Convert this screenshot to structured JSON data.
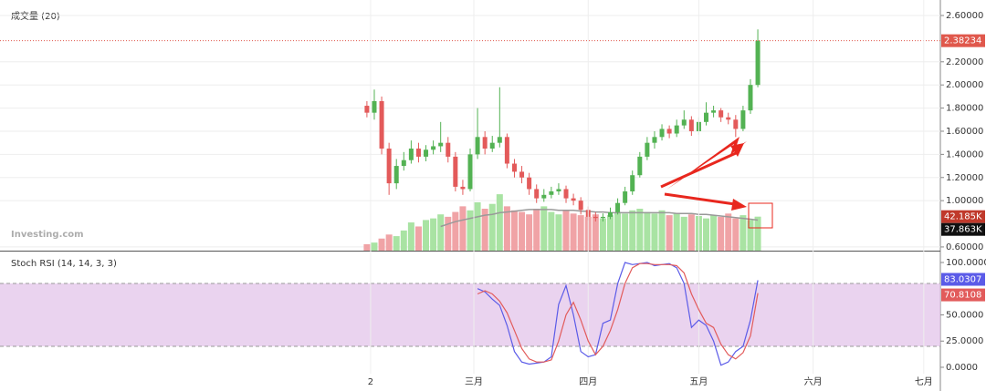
{
  "chart_data": [
    {
      "type": "candlestick",
      "title": "成交量 (20)",
      "watermark": "Investing.com",
      "x": [
        31,
        33,
        35,
        37,
        39,
        41,
        43,
        45,
        47,
        49,
        51,
        53,
        55,
        57,
        59,
        61,
        63,
        65,
        67,
        69,
        71,
        73,
        75,
        77,
        79,
        81,
        83,
        85,
        87,
        89,
        91,
        93,
        95,
        97,
        99,
        101,
        103,
        105,
        107,
        109,
        111,
        113,
        115,
        117,
        119,
        121,
        123,
        125,
        127,
        129,
        131,
        133,
        135,
        137
      ],
      "xlim": [
        -68.5,
        186.5
      ],
      "open": [
        1.82,
        1.76,
        1.86,
        1.45,
        1.15,
        1.3,
        1.35,
        1.45,
        1.38,
        1.44,
        1.47,
        1.5,
        1.38,
        1.12,
        1.1,
        1.4,
        1.55,
        1.45,
        1.5,
        1.55,
        1.32,
        1.25,
        1.2,
        1.1,
        1.02,
        1.05,
        1.08,
        1.1,
        1.02,
        1.0,
        0.92,
        0.86,
        0.85,
        0.86,
        0.9,
        0.98,
        1.08,
        1.22,
        1.38,
        1.5,
        1.55,
        1.62,
        1.58,
        1.65,
        1.7,
        1.6,
        1.68,
        1.76,
        1.78,
        1.72,
        1.7,
        1.62,
        1.78,
        2.0
      ],
      "high": [
        1.86,
        1.96,
        1.9,
        1.5,
        1.36,
        1.42,
        1.52,
        1.5,
        1.48,
        1.52,
        1.68,
        1.55,
        1.42,
        1.18,
        1.45,
        1.8,
        1.6,
        1.56,
        1.98,
        1.58,
        1.36,
        1.3,
        1.24,
        1.14,
        1.1,
        1.12,
        1.15,
        1.13,
        1.06,
        1.03,
        0.95,
        0.9,
        0.89,
        0.94,
        1.02,
        1.12,
        1.26,
        1.42,
        1.55,
        1.6,
        1.66,
        1.65,
        1.7,
        1.78,
        1.73,
        1.72,
        1.85,
        1.82,
        1.8,
        1.76,
        1.74,
        1.82,
        2.05,
        2.48
      ],
      "low": [
        1.72,
        1.7,
        1.4,
        1.05,
        1.1,
        1.26,
        1.32,
        1.33,
        1.34,
        1.4,
        1.42,
        1.33,
        1.08,
        1.05,
        1.08,
        1.36,
        1.4,
        1.42,
        1.46,
        1.28,
        1.2,
        1.15,
        1.05,
        0.98,
        0.99,
        1.02,
        1.05,
        0.98,
        0.96,
        0.88,
        0.83,
        0.82,
        0.82,
        0.84,
        0.88,
        0.96,
        1.05,
        1.2,
        1.35,
        1.45,
        1.52,
        1.54,
        1.55,
        1.62,
        1.56,
        1.57,
        1.65,
        1.72,
        1.68,
        1.66,
        1.55,
        1.6,
        1.75,
        1.98
      ],
      "close": [
        1.76,
        1.86,
        1.45,
        1.15,
        1.3,
        1.35,
        1.45,
        1.38,
        1.44,
        1.47,
        1.5,
        1.38,
        1.12,
        1.1,
        1.4,
        1.55,
        1.45,
        1.5,
        1.55,
        1.32,
        1.25,
        1.2,
        1.1,
        1.02,
        1.05,
        1.08,
        1.1,
        1.02,
        1.0,
        0.92,
        0.86,
        0.85,
        0.86,
        0.9,
        0.98,
        1.08,
        1.22,
        1.38,
        1.5,
        1.55,
        1.62,
        1.58,
        1.65,
        1.7,
        1.6,
        1.68,
        1.76,
        1.78,
        1.72,
        1.7,
        1.62,
        1.78,
        2.0,
        2.38234
      ],
      "ylim": [
        0.568,
        2.734
      ],
      "yticks": [
        {
          "value": 2.6,
          "label": "2.60000"
        },
        {
          "value": 2.2,
          "label": "2.20000"
        },
        {
          "value": 2.0,
          "label": "2.00000"
        },
        {
          "value": 1.8,
          "label": "1.80000"
        },
        {
          "value": 1.6,
          "label": "1.60000"
        },
        {
          "value": 1.4,
          "label": "1.40000"
        },
        {
          "value": 1.2,
          "label": "1.20000"
        },
        {
          "value": 1.0,
          "label": "1.00000"
        },
        {
          "value": 0.6,
          "label": "0.60000"
        }
      ],
      "up_color": "#53b253",
      "down_color": "#e35a5a",
      "last_color": "#e0584c",
      "volume": {
        "values": [
          8,
          10,
          15,
          20,
          18,
          25,
          35,
          30,
          38,
          40,
          45,
          42,
          48,
          55,
          50,
          60,
          52,
          58,
          70,
          55,
          50,
          48,
          45,
          52,
          55,
          48,
          45,
          50,
          46,
          44,
          42,
          45,
          40,
          44,
          48,
          46,
          50,
          52,
          48,
          46,
          50,
          44,
          46,
          42,
          45,
          43,
          40,
          44,
          42,
          46,
          40,
          44,
          38,
          42.185
        ],
        "ylim": [
          0,
          311
        ],
        "last_label": "42.185K",
        "up_color": "#a9e3a3",
        "down_color": "#f0a3a6"
      },
      "volume_ma": {
        "values": [
          null,
          null,
          null,
          null,
          null,
          null,
          null,
          null,
          null,
          null,
          30,
          33,
          36,
          38,
          40,
          42,
          44,
          45,
          47,
          48,
          49,
          50,
          51,
          51,
          51,
          51,
          50,
          50,
          50,
          49,
          49,
          48,
          48,
          47,
          47,
          47,
          47,
          47,
          47,
          47,
          47,
          47,
          46,
          46,
          46,
          45,
          45,
          44,
          43,
          42,
          41,
          40,
          39,
          37.863
        ],
        "last_label": "37.863K",
        "color": "#999999"
      }
    },
    {
      "type": "line",
      "title": "Stoch RSI (14, 14, 3, 3)",
      "x": [
        31,
        33,
        35,
        37,
        39,
        41,
        43,
        45,
        47,
        49,
        51,
        53,
        55,
        57,
        59,
        61,
        63,
        65,
        67,
        69,
        71,
        73,
        75,
        77,
        79,
        81,
        83,
        85,
        87,
        89,
        91,
        93,
        95,
        97,
        99,
        101,
        103,
        105,
        107,
        109,
        111,
        113,
        115,
        117,
        119,
        121,
        123,
        125,
        127,
        129,
        131,
        133,
        135,
        137
      ],
      "xlim": [
        -68.5,
        186.5
      ],
      "xticks": [
        {
          "value": 32,
          "label": "2"
        },
        {
          "value": 60,
          "label": "三月"
        },
        {
          "value": 91,
          "label": "四月"
        },
        {
          "value": 121,
          "label": "五月"
        },
        {
          "value": 152,
          "label": "六月"
        },
        {
          "value": 182,
          "label": "七月"
        }
      ],
      "ylim": [
        -14.8,
        108.7
      ],
      "yticks": [
        {
          "value": 100,
          "label": "100.0000"
        },
        {
          "value": 50,
          "label": "50.0000"
        },
        {
          "value": 25,
          "label": "25.0000"
        },
        {
          "value": 0,
          "label": "0.0000"
        }
      ],
      "band": [
        20,
        80
      ],
      "band_color": "#e3c4ea",
      "series": [
        {
          "color": "#5b5be8",
          "values": [
            null,
            null,
            null,
            null,
            null,
            null,
            null,
            null,
            null,
            null,
            null,
            null,
            null,
            null,
            null,
            75,
            72,
            65,
            59,
            40,
            15,
            5,
            3,
            4,
            5,
            10,
            60,
            78,
            50,
            15,
            10,
            12,
            42,
            45,
            80,
            100,
            98,
            99,
            100,
            97,
            98,
            99,
            95,
            80,
            38,
            45,
            40,
            25,
            2,
            5,
            15,
            20,
            45,
            83.0307
          ]
        },
        {
          "color": "#e25b5b",
          "values": [
            null,
            null,
            null,
            null,
            null,
            null,
            null,
            null,
            null,
            null,
            null,
            null,
            null,
            null,
            null,
            70,
            73,
            70,
            63,
            52,
            35,
            18,
            8,
            5,
            5,
            7,
            25,
            50,
            62,
            45,
            25,
            12,
            20,
            35,
            55,
            80,
            95,
            99,
            99,
            98,
            98,
            98,
            97,
            90,
            70,
            55,
            42,
            38,
            22,
            12,
            8,
            14,
            30,
            70.8108
          ]
        }
      ]
    }
  ]
}
